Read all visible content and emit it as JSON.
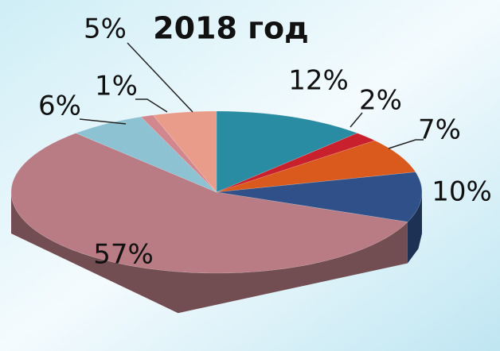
{
  "chart_data": {
    "type": "pie",
    "title": "2018 год",
    "values": [
      12,
      2,
      7,
      10,
      57,
      6,
      1,
      5
    ],
    "value_labels": [
      "12%",
      "2%",
      "7%",
      "10%",
      "57%",
      "6%",
      "1%",
      "5%"
    ],
    "colors": [
      "#2a8ca2",
      "#c8202c",
      "#d95a1c",
      "#2f5088",
      "#b97c84",
      "#8cc2d2",
      "#d2868e",
      "#e99c8a"
    ]
  }
}
